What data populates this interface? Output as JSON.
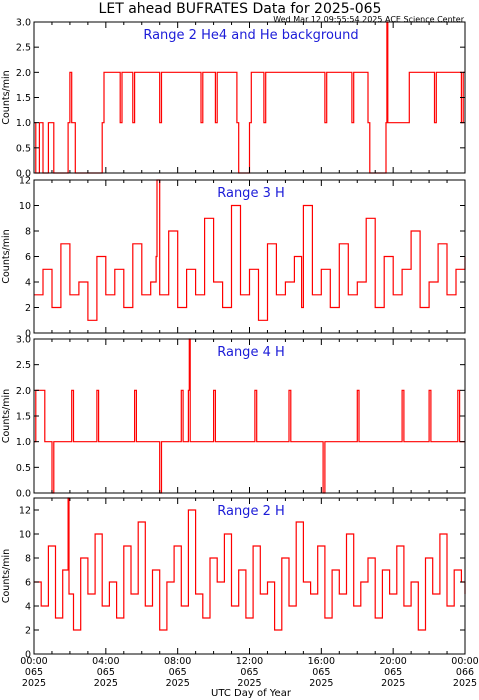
{
  "header": {
    "title": "LET ahead BUFRATES Data for 2025-065",
    "stamp": "Wed Mar 12 09:55:54 2025 ACE Science Center"
  },
  "x_axis": {
    "label": "UTC Day of Year",
    "ticks": [
      {
        "l1": "00:00",
        "l2": "065",
        "l3": "2025"
      },
      {
        "l1": "04:00",
        "l2": "065",
        "l3": "2025"
      },
      {
        "l1": "08:00",
        "l2": "065",
        "l3": "2025"
      },
      {
        "l1": "12:00",
        "l2": "065",
        "l3": "2025"
      },
      {
        "l1": "16:00",
        "l2": "065",
        "l3": "2025"
      },
      {
        "l1": "20:00",
        "l2": "065",
        "l3": "2025"
      },
      {
        "l1": "00:00",
        "l2": "066",
        "l3": "2025"
      }
    ]
  },
  "colors": {
    "series": "#ff0000",
    "panel_title": "#1c1cd8",
    "axes": "#000000"
  },
  "chart_data": [
    {
      "type": "line",
      "title": "Range 2 He4 and He background",
      "ylabel": "Counts/min",
      "xlim": [
        0,
        24
      ],
      "ylim": [
        0,
        3
      ],
      "yticks": [
        "0.0",
        "0.5",
        "1.0",
        "1.5",
        "2.0",
        "2.5",
        "3.0"
      ],
      "x_unit": "hours UTC, day 065",
      "series": [
        {
          "x": [
            0.0,
            0.1,
            0.3,
            0.5,
            0.8,
            1.0,
            1.1,
            1.9,
            2.0,
            2.1,
            2.3,
            3.8,
            3.9,
            4.8,
            4.9,
            5.5,
            5.6,
            7.0,
            7.1,
            9.3,
            9.4,
            10.1,
            10.2,
            11.3,
            11.4,
            12.0,
            12.1,
            12.8,
            12.9,
            16.2,
            16.3,
            17.7,
            17.8,
            18.6,
            18.7,
            19.6,
            19.65,
            19.7,
            20.8,
            20.9,
            22.3,
            22.4,
            23.8,
            23.9,
            24.0
          ],
          "y": [
            1,
            0,
            1,
            0,
            1,
            1,
            0,
            1,
            2,
            1,
            0,
            1,
            2,
            1,
            2,
            1,
            2,
            1,
            2,
            1,
            2,
            1,
            2,
            1,
            0,
            1,
            2,
            1,
            2,
            1,
            2,
            1,
            2,
            1,
            0,
            1,
            3,
            1,
            1,
            2,
            1,
            2,
            1,
            2,
            2
          ]
        }
      ]
    },
    {
      "type": "line",
      "title": "Range 3 H",
      "ylabel": "Counts/min",
      "xlim": [
        0,
        24
      ],
      "ylim": [
        0,
        12
      ],
      "yticks": [
        "0",
        "2",
        "4",
        "6",
        "8",
        "10",
        "12"
      ],
      "x_unit": "hours UTC, day 065",
      "series": [
        {
          "x": [
            0.0,
            0.5,
            1.0,
            1.5,
            2.0,
            2.5,
            3.0,
            3.5,
            4.0,
            4.5,
            5.0,
            5.5,
            6.0,
            6.5,
            6.8,
            6.85,
            7.0,
            7.5,
            8.0,
            8.5,
            9.0,
            9.5,
            10.0,
            10.5,
            11.0,
            11.5,
            12.0,
            12.5,
            13.0,
            13.5,
            14.0,
            14.5,
            14.9,
            15.0,
            15.5,
            16.0,
            16.5,
            17.0,
            17.5,
            18.0,
            18.5,
            19.0,
            19.5,
            20.0,
            20.5,
            21.0,
            21.5,
            22.0,
            22.5,
            23.0,
            23.5,
            24.0
          ],
          "y": [
            3,
            5,
            2,
            7,
            3,
            4,
            1,
            6,
            3,
            5,
            2,
            7,
            3,
            4,
            6,
            12,
            3,
            8,
            2,
            5,
            3,
            9,
            4,
            2,
            10,
            3,
            5,
            1,
            7,
            3,
            4,
            6,
            2,
            10,
            3,
            5,
            2,
            7,
            3,
            4,
            9,
            2,
            6,
            3,
            5,
            8,
            2,
            4,
            7,
            3,
            5,
            6
          ]
        }
      ]
    },
    {
      "type": "line",
      "title": "Range 4 H",
      "ylabel": "Counts/min",
      "xlim": [
        0,
        24
      ],
      "ylim": [
        0,
        3
      ],
      "yticks": [
        "0.0",
        "0.5",
        "1.0",
        "1.5",
        "2.0",
        "2.5",
        "3.0"
      ],
      "x_unit": "hours UTC, day 065",
      "series": [
        {
          "x": [
            0.0,
            0.1,
            0.5,
            0.6,
            1.0,
            1.1,
            2.1,
            2.2,
            3.5,
            3.6,
            5.6,
            5.7,
            7.0,
            7.1,
            8.2,
            8.3,
            8.6,
            8.65,
            8.7,
            10.0,
            10.1,
            12.3,
            12.4,
            14.2,
            14.3,
            16.1,
            16.2,
            18.0,
            18.1,
            20.5,
            20.6,
            22.0,
            22.1,
            23.6,
            23.7,
            24.0
          ],
          "y": [
            1,
            2,
            2,
            1,
            0,
            1,
            2,
            1,
            2,
            1,
            2,
            1,
            0,
            1,
            2,
            1,
            2,
            3,
            1,
            2,
            1,
            2,
            1,
            2,
            1,
            0,
            1,
            2,
            1,
            2,
            1,
            2,
            1,
            2,
            1,
            1
          ]
        }
      ]
    },
    {
      "type": "line",
      "title": "Range 2 H",
      "ylabel": "Counts/min",
      "xlim": [
        0,
        24
      ],
      "ylim": [
        0,
        13
      ],
      "yticks": [
        "0",
        "2",
        "4",
        "6",
        "8",
        "10",
        "12"
      ],
      "x_unit": "hours UTC, day 065",
      "series": [
        {
          "x": [
            0.0,
            0.4,
            0.8,
            1.2,
            1.6,
            1.9,
            1.95,
            2.2,
            2.6,
            3.0,
            3.4,
            3.8,
            4.2,
            4.6,
            5.0,
            5.4,
            5.8,
            6.2,
            6.6,
            7.0,
            7.4,
            7.8,
            8.2,
            8.6,
            9.0,
            9.4,
            9.8,
            10.2,
            10.6,
            11.0,
            11.4,
            11.8,
            12.2,
            12.6,
            13.0,
            13.4,
            13.8,
            14.2,
            14.6,
            15.0,
            15.4,
            15.8,
            16.2,
            16.6,
            17.0,
            17.4,
            17.8,
            18.2,
            18.6,
            19.0,
            19.4,
            19.8,
            20.2,
            20.6,
            21.0,
            21.4,
            21.8,
            22.2,
            22.6,
            23.0,
            23.4,
            23.8,
            24.0
          ],
          "y": [
            6,
            4,
            9,
            3,
            7,
            13,
            5,
            2,
            8,
            5,
            10,
            4,
            6,
            3,
            9,
            5,
            11,
            4,
            7,
            2,
            6,
            9,
            4,
            12,
            5,
            3,
            8,
            6,
            10,
            4,
            7,
            3,
            9,
            5,
            6,
            2,
            8,
            4,
            11,
            6,
            5,
            9,
            3,
            7,
            5,
            10,
            4,
            6,
            8,
            3,
            7,
            5,
            9,
            4,
            6,
            2,
            8,
            5,
            10,
            4,
            7,
            6,
            5
          ]
        }
      ]
    }
  ]
}
